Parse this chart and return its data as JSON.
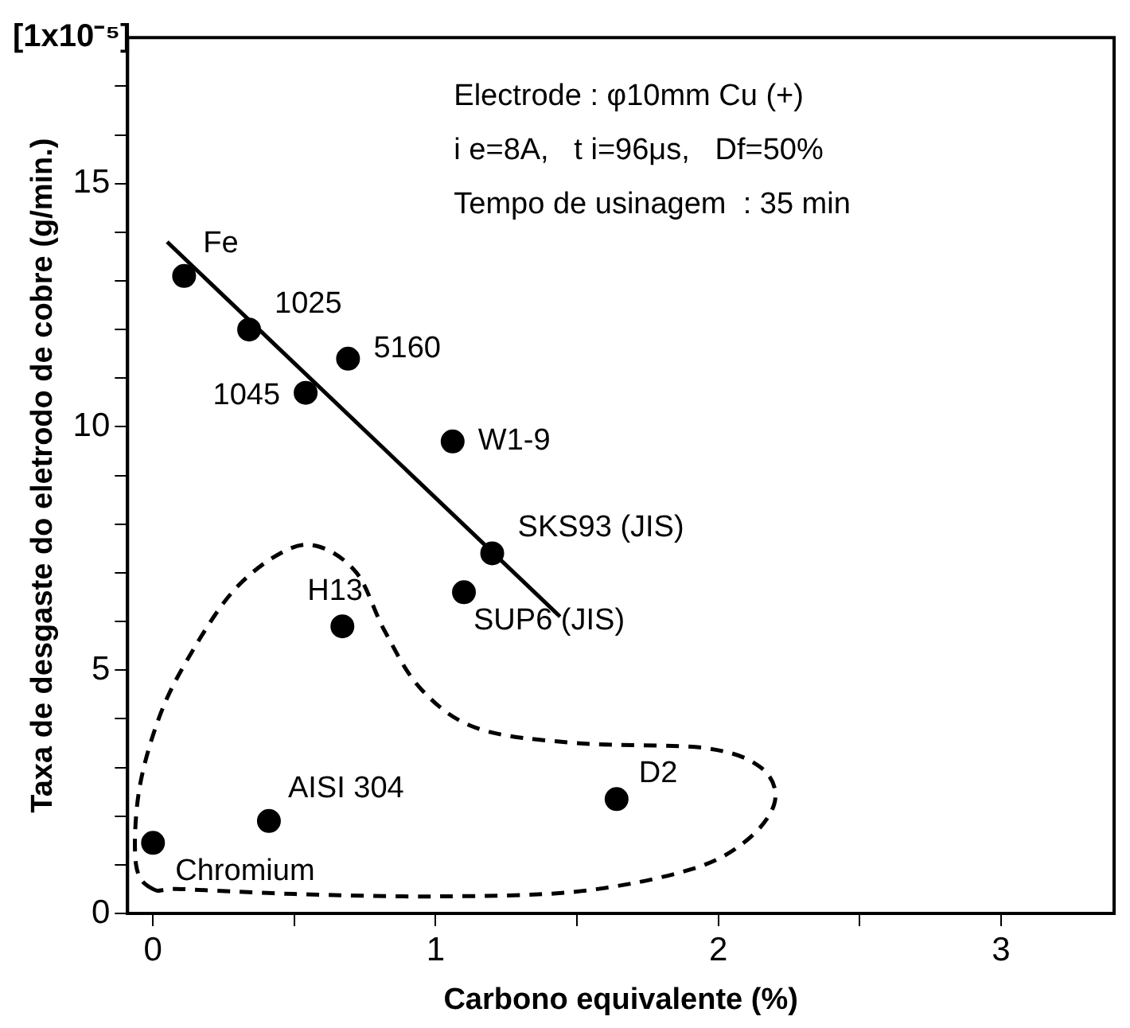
{
  "chart_data": {
    "type": "scatter",
    "xlabel": "Carbono equivalente (%)",
    "ylabel": "Taxa de desgaste do eletrodo de cobre (g/min.)",
    "xlim": [
      -0.09,
      3.4
    ],
    "ylim": [
      0,
      18
    ],
    "xticks": [
      0,
      {
        "value": 0.5,
        "label": null
      },
      1,
      {
        "value": 1.5,
        "label": null
      },
      2,
      {
        "value": 2.5,
        "label": null
      },
      3
    ],
    "yticks": [
      0,
      {
        "value": 1,
        "label": null
      },
      {
        "value": 2,
        "label": null
      },
      {
        "value": 3,
        "label": null
      },
      {
        "value": 4,
        "label": null
      },
      5,
      {
        "value": 6,
        "label": null
      },
      {
        "value": 7,
        "label": null
      },
      {
        "value": 8,
        "label": null
      },
      {
        "value": 9,
        "label": null
      },
      10,
      {
        "value": 11,
        "label": null
      },
      {
        "value": 12,
        "label": null
      },
      {
        "value": 13,
        "label": null
      },
      {
        "value": 14,
        "label": null
      },
      15,
      {
        "value": 16,
        "label": null
      },
      {
        "value": 17,
        "label": null
      }
    ],
    "grid": false,
    "legend": false,
    "series": [
      {
        "type": "scatter",
        "color": "#000000",
        "marker": "circle",
        "x": [
          0.11,
          0.34,
          0.54,
          0.69,
          1.06,
          1.2,
          1.1,
          0.67,
          0.41,
          1.64,
          0.0
        ],
        "values": [
          13.1,
          12.0,
          10.7,
          11.4,
          9.7,
          7.4,
          6.6,
          5.9,
          1.9,
          2.35,
          1.45
        ]
      },
      {
        "type": "line",
        "color": "#000000",
        "marker": "none",
        "line_style": "solid",
        "x": [
          0.05,
          1.44
        ],
        "values": [
          13.8,
          6.1
        ]
      }
    ],
    "annotations": [
      "[1x10⁻⁵]",
      "Electrode : φ10mm Cu (+)",
      "i e=8A,   t i=96μs,   Df=50%",
      "Tempo de usinagem  : 35 min",
      {
        "text": "Fe",
        "x": 0.11,
        "y": 13.1
      },
      {
        "text": "1025",
        "x": 0.34,
        "y": 12.0
      },
      {
        "text": "1045",
        "x": 0.54,
        "y": 10.7
      },
      {
        "text": "5160",
        "x": 0.69,
        "y": 11.4
      },
      {
        "text": "W1-9",
        "x": 1.06,
        "y": 9.7
      },
      {
        "text": "SKS93 (JIS)",
        "x": 1.2,
        "y": 7.4
      },
      {
        "text": "SUP6 (JIS)",
        "x": 1.1,
        "y": 6.6
      },
      {
        "text": "H13",
        "x": 0.67,
        "y": 5.9
      },
      {
        "text": "AISI 304",
        "x": 0.41,
        "y": 1.9
      },
      {
        "text": "D2",
        "x": 1.64,
        "y": 2.35
      },
      {
        "text": "Chromium",
        "x": 0.0,
        "y": 1.45
      }
    ]
  }
}
